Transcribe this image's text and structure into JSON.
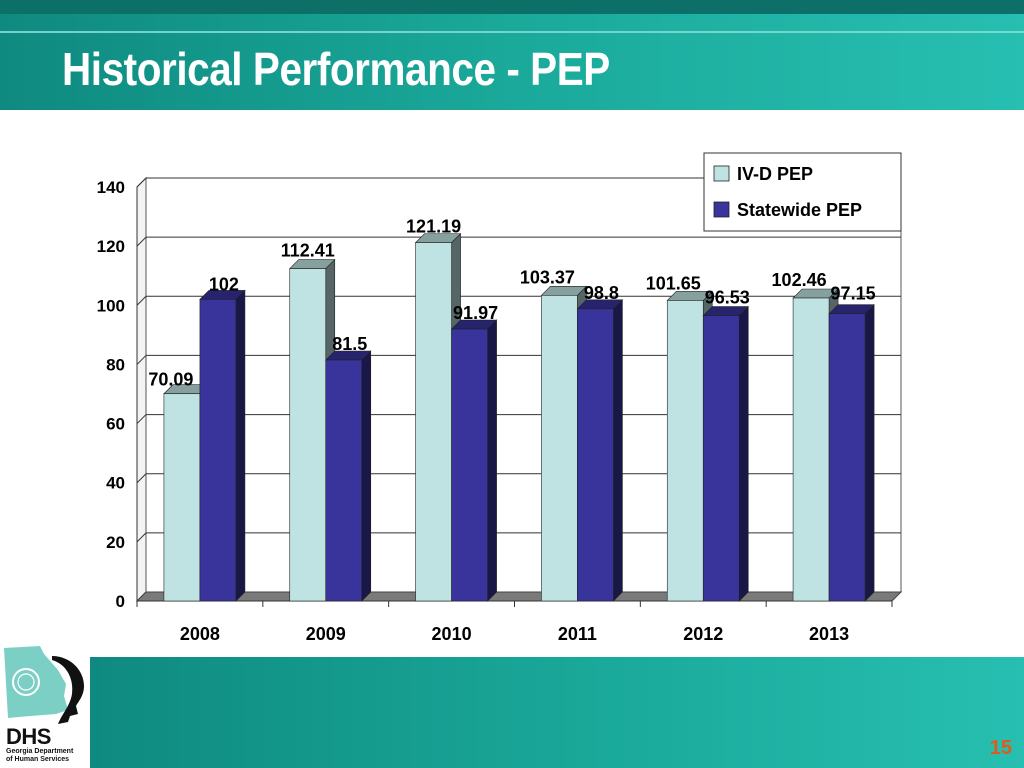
{
  "slide": {
    "title": "Historical Performance - PEP",
    "page_number": "15"
  },
  "logo": {
    "name": "DHS",
    "line1": "Georgia Department",
    "line2": "of Human Services",
    "colors": {
      "state_shape": "#7ccfc4",
      "mark": "#111111"
    }
  },
  "theme": {
    "band_dark": "#0f8a80",
    "band_light": "#27bfb1",
    "page_number_color": "#e05a1a"
  },
  "chart_data": {
    "type": "bar",
    "style": "3d-clustered",
    "categories": [
      "2008",
      "2009",
      "2010",
      "2011",
      "2012",
      "2013"
    ],
    "series": [
      {
        "name": "IV-D PEP",
        "values": [
          70.09,
          112.41,
          121.19,
          103.37,
          101.65,
          102.46
        ],
        "color": "#bfe3e3"
      },
      {
        "name": "Statewide PEP",
        "values": [
          102,
          81.5,
          91.97,
          98.8,
          96.53,
          97.15
        ],
        "color": "#38349c"
      }
    ],
    "data_labels": [
      [
        "70.09",
        "112.41",
        "121.19",
        "103.37",
        "101.65",
        "102.46"
      ],
      [
        "102",
        "81.5",
        "91.97",
        "98.8",
        "96.53",
        "97.15"
      ]
    ],
    "y_ticks": [
      "0",
      "20",
      "40",
      "60",
      "80",
      "100",
      "120",
      "140"
    ],
    "ylim": [
      0,
      140
    ],
    "grid": true,
    "legend": "top-right"
  }
}
